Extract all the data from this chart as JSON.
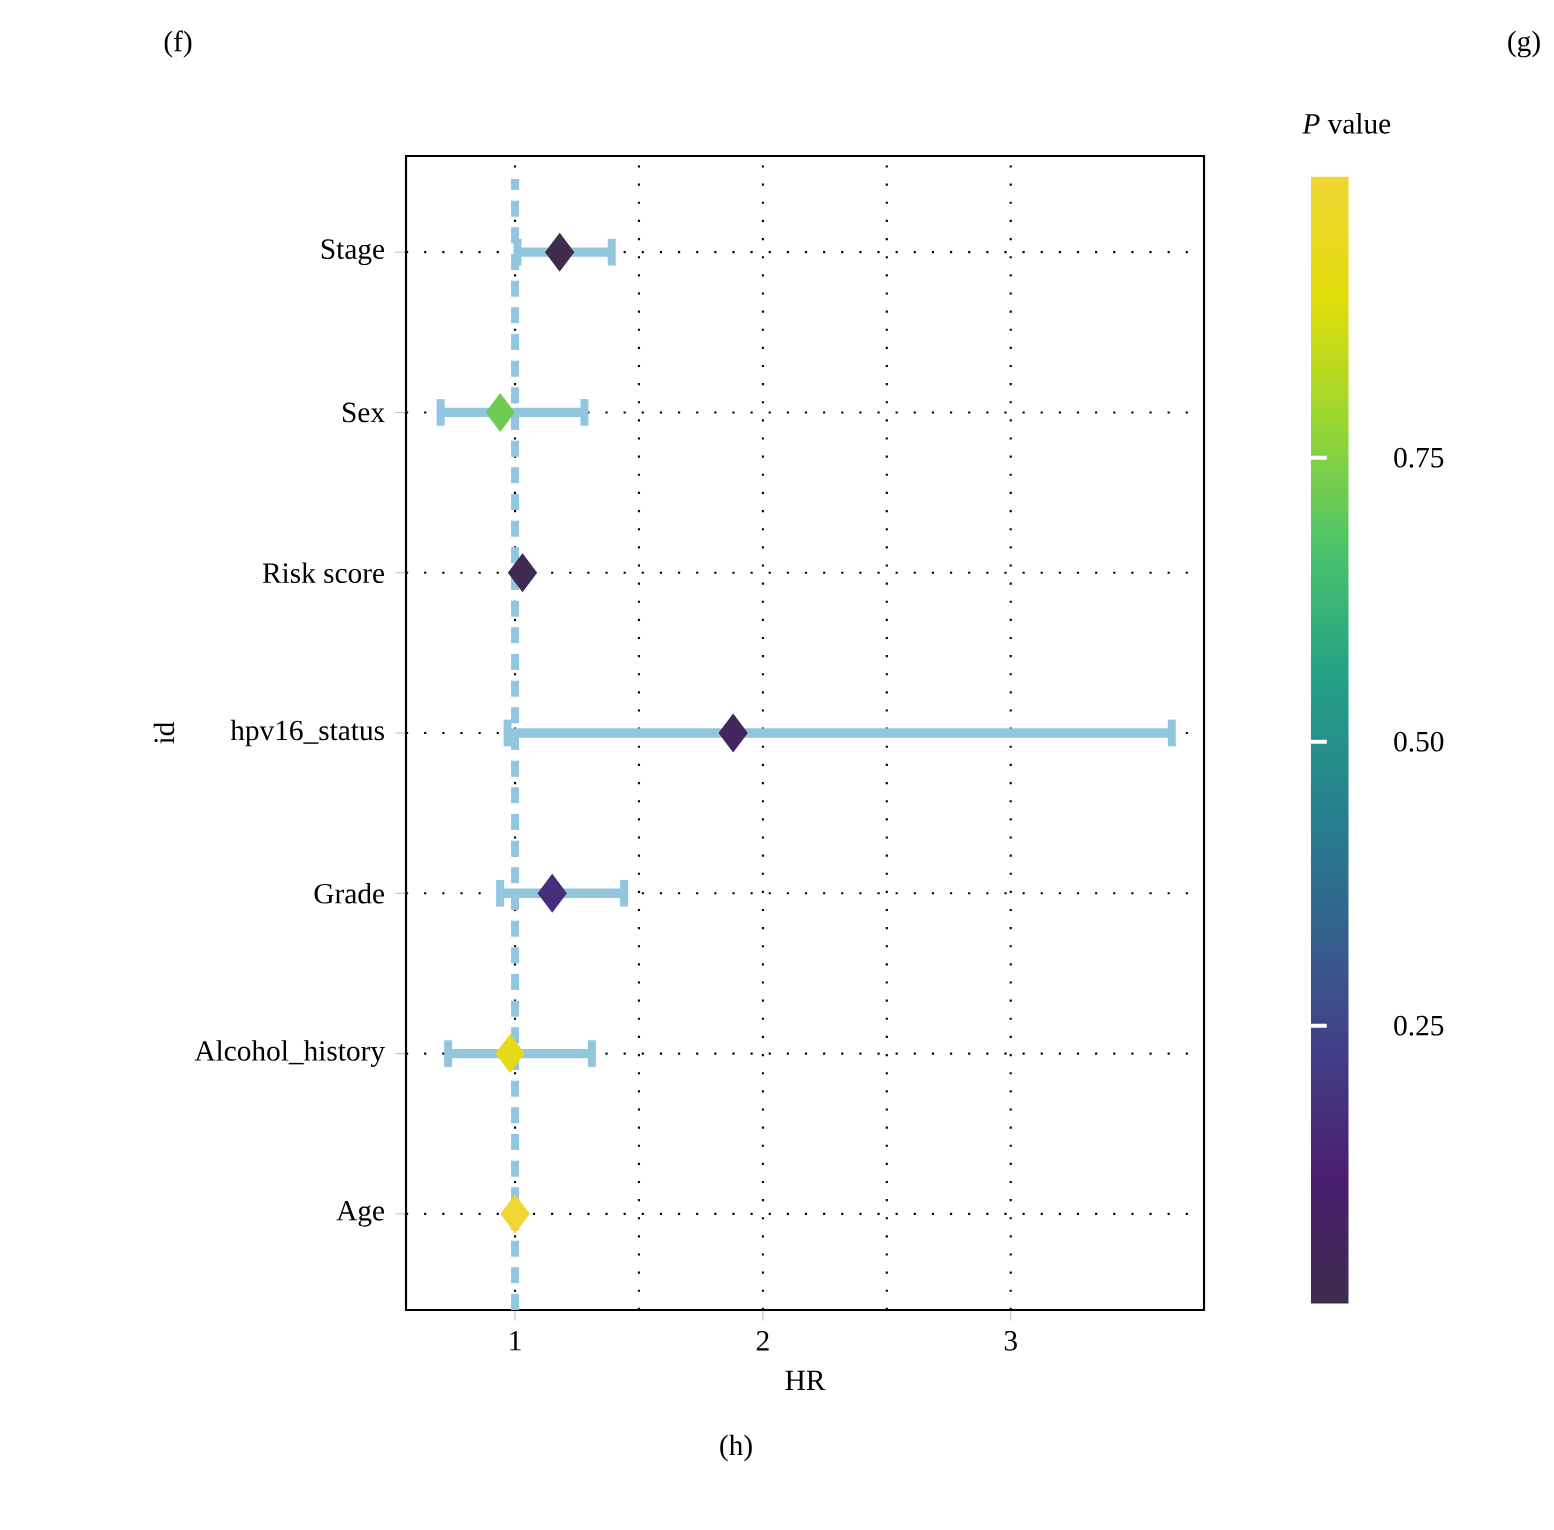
{
  "chart_data": {
    "type": "scatter",
    "orientation": "horizontal",
    "xlabel": "HR",
    "ylabel": "id",
    "clabel": "*P* value",
    "categories": [
      "Stage",
      "Sex",
      "Risk score",
      "hpv16_status",
      "Grade",
      "Alcohol_history",
      "Age"
    ],
    "values": [
      1.18,
      0.94,
      1.03,
      1.88,
      1.15,
      0.98,
      1.0
    ],
    "errors": [
      [
        1.01,
        1.39
      ],
      [
        0.7,
        1.28
      ],
      null,
      [
        0.97,
        3.65
      ],
      [
        0.94,
        1.44
      ],
      [
        0.73,
        1.31
      ],
      null
    ],
    "cvalues": [
      0.005,
      0.72,
      0.02,
      0.05,
      0.17,
      0.92,
      0.998
    ],
    "clim": [
      0.005,
      0.998
    ],
    "cticks": [
      0.25,
      {
        "value": 0.5,
        "label": "0.50"
      },
      0.75
    ],
    "xlim": [
      0.56,
      3.78
    ],
    "xticks": [
      1,
      2,
      3
    ],
    "ref_lines": [
      {
        "axis": "x",
        "value": 1,
        "color": "#92c5de",
        "line_style": "dashed"
      }
    ],
    "grid": true,
    "marker": "diamond",
    "annotations": [
      "(f)",
      "(g)",
      "(h)"
    ]
  }
}
